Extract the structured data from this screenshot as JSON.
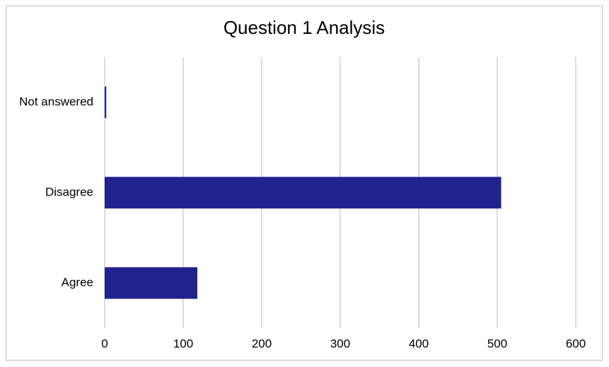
{
  "chart_data": {
    "type": "bar",
    "orientation": "horizontal",
    "title": "Question 1 Analysis",
    "categories": [
      "Not answered",
      "Disagree",
      "Agree"
    ],
    "values": [
      2,
      505,
      118
    ],
    "color": "#21218f",
    "xlim": [
      0,
      600
    ],
    "xticks": [
      0,
      100,
      200,
      300,
      400,
      500,
      600
    ],
    "grid": true
  }
}
